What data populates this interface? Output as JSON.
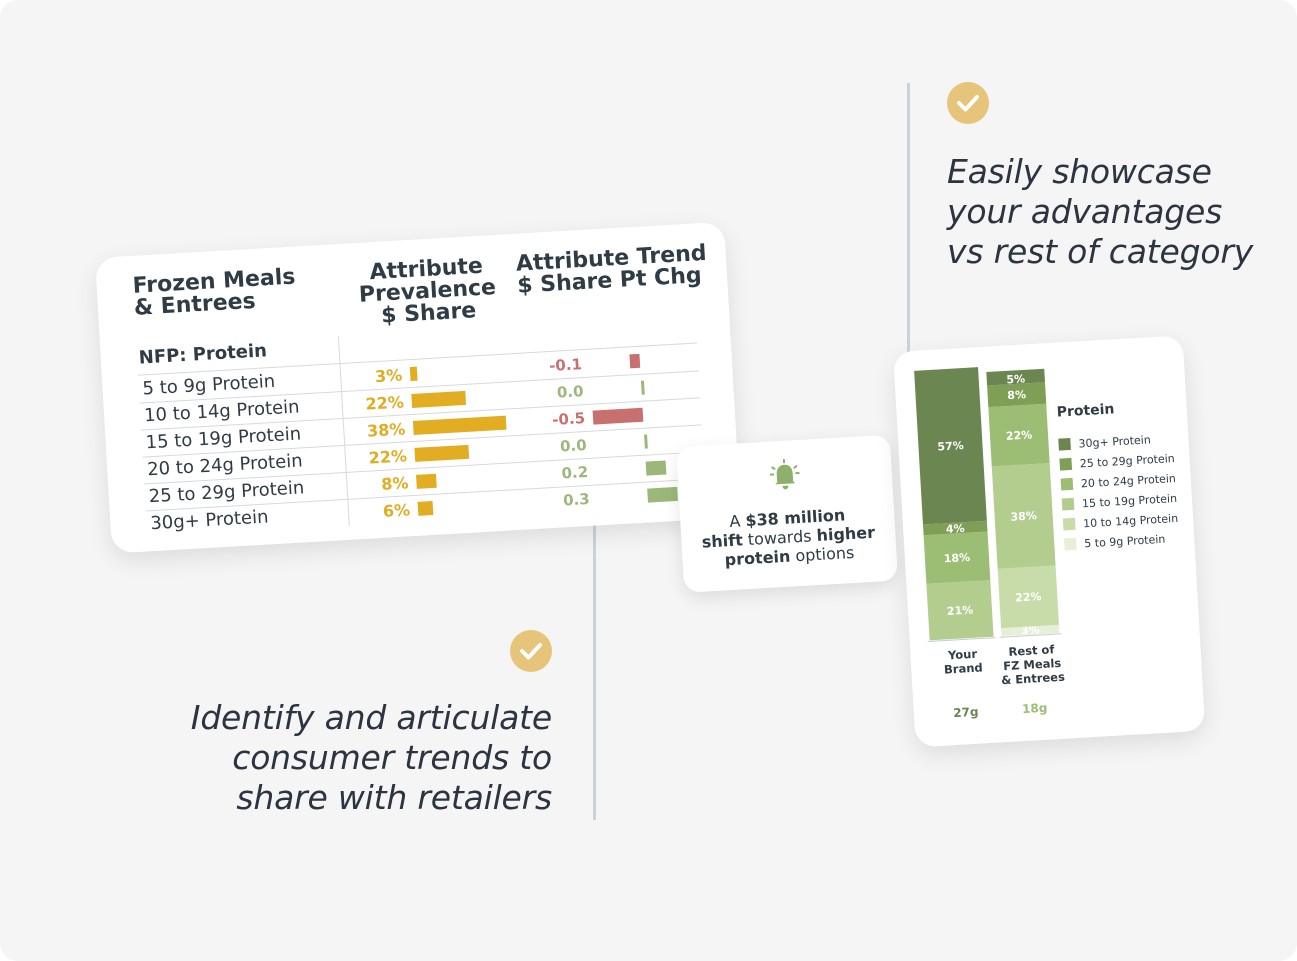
{
  "captions": {
    "top_right": [
      "Easily showcase",
      "your advantages",
      "vs rest of category"
    ],
    "bottom_left": [
      "Identify and articulate",
      "consumer trends to",
      "share with retailers"
    ]
  },
  "colors": {
    "background": "#f4f5f4",
    "check": "#e6c47a",
    "prevalence_bar": "#e3ad23",
    "trend_negative": "#c8706f",
    "trend_positive": "#9bb87a"
  },
  "icons": {
    "check": "checkmark-circle-icon",
    "alert": "bell-icon"
  },
  "table": {
    "title_lines": [
      "Frozen Meals",
      "& Entrees"
    ],
    "col1_header_lines": [
      "Attribute",
      "Prevalence",
      "$ Share"
    ],
    "col2_header_lines": [
      "Attribute Trend",
      "$ Share Pt Chg"
    ],
    "section_label": "NFP: Protein",
    "rows": [
      {
        "label": "5 to 9g Protein",
        "prevalence": "3%",
        "trend": "-0.1"
      },
      {
        "label": "10 to 14g Protein",
        "prevalence": "22%",
        "trend": "0.0"
      },
      {
        "label": "15 to 19g Protein",
        "prevalence": "38%",
        "trend": "-0.5"
      },
      {
        "label": "20 to 24g Protein",
        "prevalence": "22%",
        "trend": "0.0"
      },
      {
        "label": "25 to 29g Protein",
        "prevalence": "8%",
        "trend": "0.2"
      },
      {
        "label": "30g+ Protein",
        "prevalence": "6%",
        "trend": "0.3"
      }
    ]
  },
  "callout": {
    "line1_pre": "A ",
    "line1_bold": "$38 million",
    "line2_bold": "shift",
    "line2_mid": " towards ",
    "line2_bold2": "higher",
    "line3_bold": "protein",
    "line3_post": " options"
  },
  "chart_data": {
    "type": "bar",
    "stacked": true,
    "title": "Protein",
    "categories": [
      "Your Brand",
      "Rest of FZ Meals & Entrees"
    ],
    "category_label_lines": [
      [
        "Your",
        "Brand"
      ],
      [
        "Rest of",
        "FZ Meals",
        "& Entrees"
      ]
    ],
    "averages": [
      "27g",
      "18g"
    ],
    "series": [
      {
        "name": "5 to 9g Protein",
        "values": [
          0,
          3
        ],
        "color": "#e7efd9"
      },
      {
        "name": "10 to 14g Protein",
        "values": [
          0,
          22
        ],
        "color": "#c8dcaa"
      },
      {
        "name": "15 to 19g Protein",
        "values": [
          21,
          38
        ],
        "color": "#b3cd8f"
      },
      {
        "name": "20 to 24g Protein",
        "values": [
          18,
          22
        ],
        "color": "#9cbd74"
      },
      {
        "name": "25 to 29g Protein",
        "values": [
          4,
          8
        ],
        "color": "#7f9f57"
      },
      {
        "name": "30g+ Protein",
        "values": [
          57,
          5
        ],
        "color": "#6b8650"
      }
    ],
    "data_labels": [
      [
        "",
        "",
        "21%",
        "18%",
        "4%",
        "57%"
      ],
      [
        "3%",
        "22%",
        "38%",
        "22%",
        "8%",
        "5%"
      ]
    ],
    "ylim": [
      0,
      100
    ],
    "legend": "right"
  }
}
